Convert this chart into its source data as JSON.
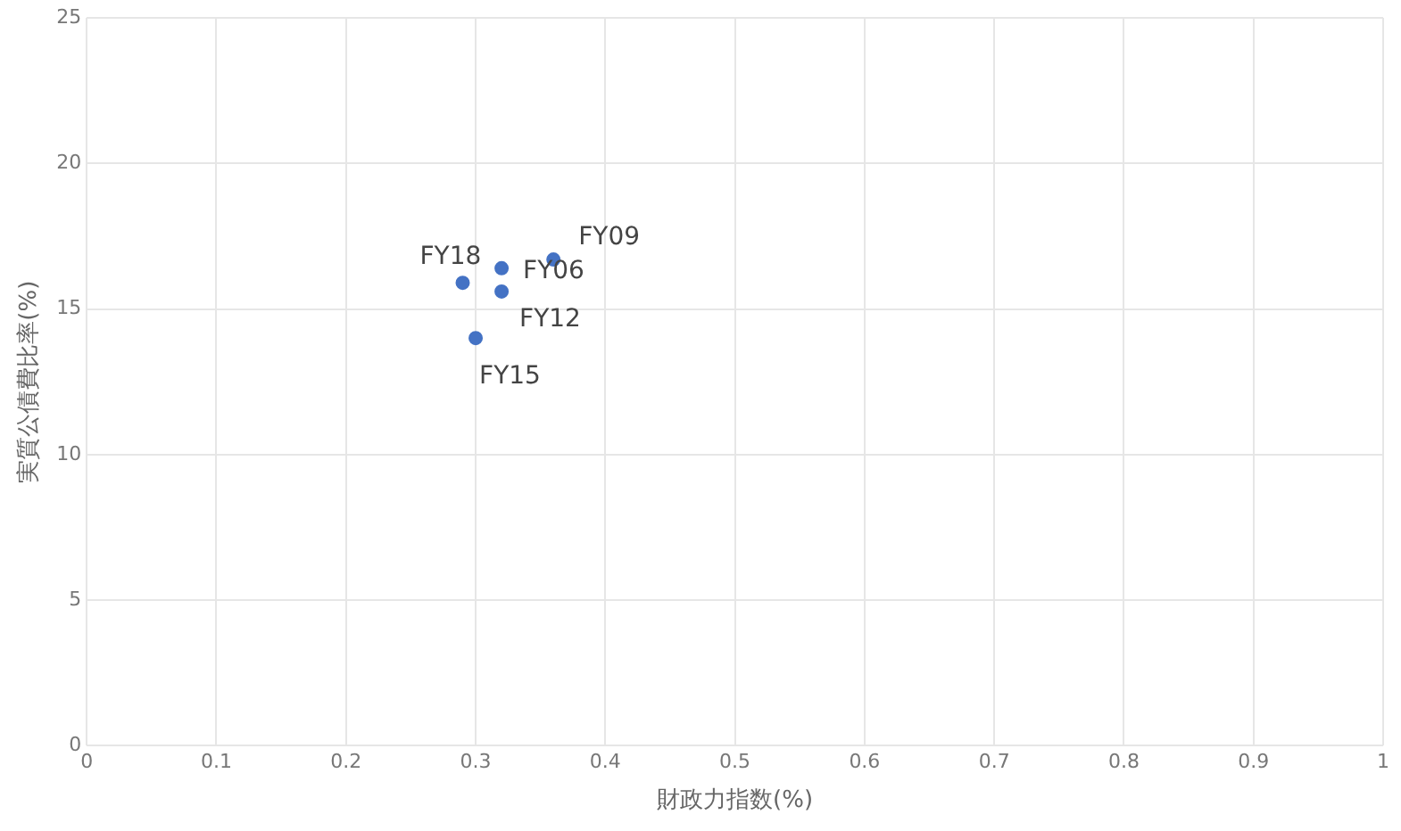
{
  "chart_data": {
    "type": "scatter",
    "xlabel": "財政力指数(%)",
    "ylabel": "実質公債費比率(%)",
    "x": [
      0.32,
      0.36,
      0.32,
      0.3,
      0.29
    ],
    "series": [
      {
        "color": "#4472c4",
        "values": [
          16.4,
          16.7,
          15.6,
          14.0,
          15.9
        ]
      }
    ],
    "xlim": [
      0,
      1
    ],
    "xticks": [
      0,
      0.1,
      0.2,
      0.3,
      0.4,
      0.5,
      0.6,
      0.7,
      0.8,
      0.9,
      1
    ],
    "ylim": [
      0,
      25
    ],
    "yticks": [
      0,
      5,
      10,
      15,
      20,
      25
    ],
    "grid": true,
    "legend": false,
    "marker": "circle",
    "annotations": [
      {
        "text": "FY06",
        "x": 0.32,
        "y": 16.4
      },
      {
        "text": "FY09",
        "x": 0.36,
        "y": 16.7
      },
      {
        "text": "FY12",
        "x": 0.32,
        "y": 15.6
      },
      {
        "text": "FY15",
        "x": 0.3,
        "y": 14.0
      },
      {
        "text": "FY18",
        "x": 0.29,
        "y": 15.9
      }
    ]
  }
}
